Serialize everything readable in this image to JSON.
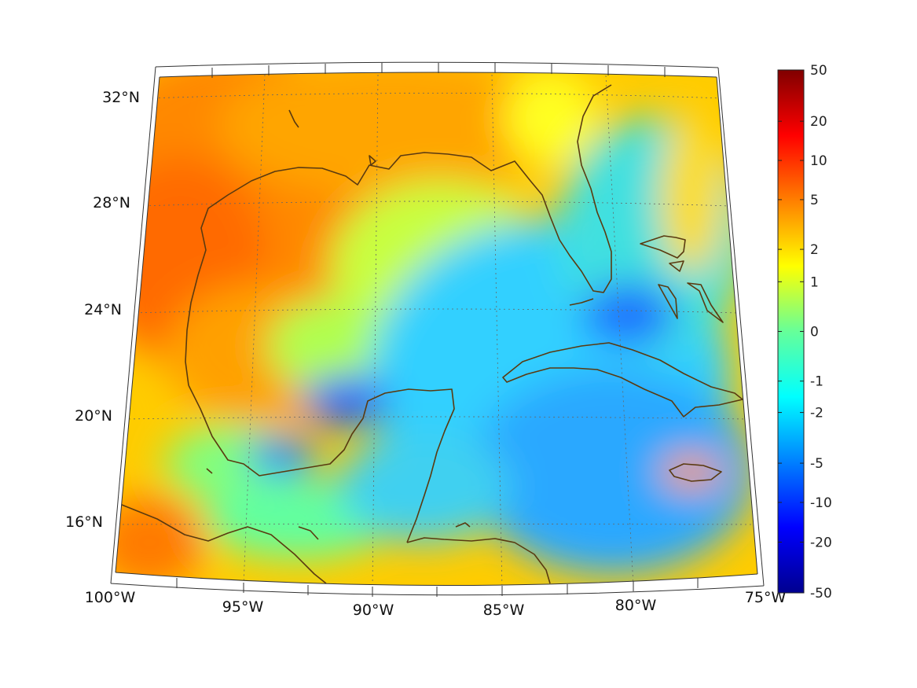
{
  "map": {
    "projection": "conic",
    "region": "Gulf of Mexico and Caribbean",
    "lon_range": [
      -100,
      -75
    ],
    "lat_range": [
      14,
      33
    ],
    "grid": true,
    "coastline_color": "#5a3a10",
    "lon_labels": [
      {
        "value": -100,
        "text": "100°W"
      },
      {
        "value": -95,
        "text": "95°W"
      },
      {
        "value": -90,
        "text": "90°W"
      },
      {
        "value": -85,
        "text": "85°W"
      },
      {
        "value": -80,
        "text": "80°W"
      },
      {
        "value": -75,
        "text": "75°W"
      }
    ],
    "lat_labels": [
      {
        "value": 32,
        "text": "32°N"
      },
      {
        "value": 28,
        "text": "28°N"
      },
      {
        "value": 24,
        "text": "24°N"
      },
      {
        "value": 20,
        "text": "20°N"
      },
      {
        "value": 16,
        "text": "16°N"
      }
    ]
  },
  "colorbar": {
    "colormap": "jet",
    "nonlinear": true,
    "ticks": [
      {
        "value": 50,
        "text": "50"
      },
      {
        "value": 20,
        "text": "20"
      },
      {
        "value": 10,
        "text": "10"
      },
      {
        "value": 5,
        "text": "5"
      },
      {
        "value": 2,
        "text": "2"
      },
      {
        "value": 1,
        "text": "1"
      },
      {
        "value": 0,
        "text": "0"
      },
      {
        "value": -1,
        "text": "-1"
      },
      {
        "value": -2,
        "text": "-2"
      },
      {
        "value": -5,
        "text": "-5"
      },
      {
        "value": -10,
        "text": "-10"
      },
      {
        "value": -20,
        "text": "-20"
      },
      {
        "value": -50,
        "text": "-50"
      }
    ]
  }
}
